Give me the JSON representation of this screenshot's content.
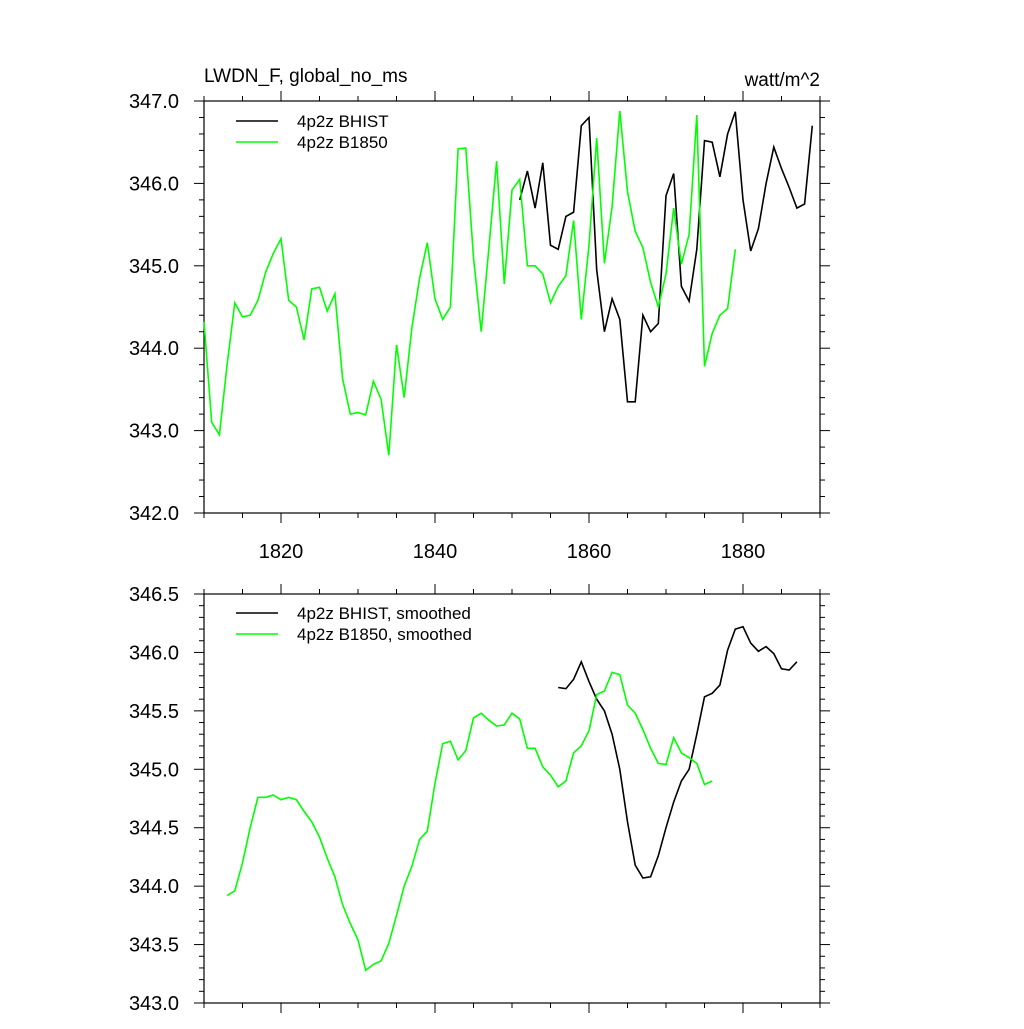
{
  "chart_data": [
    {
      "type": "line",
      "title_left": "LWDN_F, global_no_ms",
      "title_right": "watt/m^2",
      "xlim": [
        1810,
        1890
      ],
      "ylim": [
        342.0,
        347.0
      ],
      "x_ticks": [
        1820,
        1840,
        1860,
        1880
      ],
      "x_tick_labels": [
        "1820",
        "1840",
        "1860",
        "1880"
      ],
      "y_ticks": [
        342.0,
        343.0,
        344.0,
        345.0,
        346.0,
        347.0
      ],
      "y_tick_labels": [
        "342.0",
        "343.0",
        "344.0",
        "345.0",
        "346.0",
        "347.0"
      ],
      "legend_position": "top-left",
      "series": [
        {
          "name": "4p2z BHIST",
          "color": "#000000",
          "x": [
            1851,
            1852,
            1853,
            1854,
            1855,
            1856,
            1857,
            1858,
            1859,
            1860,
            1861,
            1862,
            1863,
            1864,
            1865,
            1866,
            1867,
            1868,
            1869,
            1870,
            1871,
            1872,
            1873,
            1874,
            1875,
            1876,
            1877,
            1878,
            1879,
            1880,
            1881,
            1882,
            1883,
            1884,
            1885,
            1886,
            1887,
            1888,
            1889
          ],
          "y": [
            345.8,
            346.15,
            345.7,
            346.25,
            345.25,
            345.2,
            345.6,
            345.65,
            346.7,
            346.8,
            344.95,
            344.2,
            344.6,
            344.35,
            343.35,
            343.35,
            344.4,
            344.2,
            344.3,
            345.85,
            346.12,
            344.75,
            344.57,
            345.2,
            346.52,
            346.5,
            346.08,
            346.6,
            346.87,
            345.8,
            345.18,
            345.45,
            346.0,
            346.44,
            346.18,
            345.95,
            345.7,
            345.75,
            346.7
          ]
        },
        {
          "name": "4p2z B1850",
          "color": "#00ff00",
          "x": [
            1810,
            1811,
            1812,
            1813,
            1814,
            1815,
            1816,
            1817,
            1818,
            1819,
            1820,
            1821,
            1822,
            1823,
            1824,
            1825,
            1826,
            1827,
            1828,
            1829,
            1830,
            1831,
            1832,
            1833,
            1834,
            1835,
            1836,
            1837,
            1838,
            1839,
            1840,
            1841,
            1842,
            1843,
            1844,
            1845,
            1846,
            1847,
            1848,
            1849,
            1850,
            1851,
            1852,
            1853,
            1854,
            1855,
            1856,
            1857,
            1858,
            1859,
            1860,
            1861,
            1862,
            1863,
            1864,
            1865,
            1866,
            1867,
            1868,
            1869,
            1870,
            1871,
            1872,
            1873,
            1874,
            1875,
            1876,
            1877,
            1878,
            1879
          ],
          "y": [
            344.32,
            343.1,
            342.95,
            343.8,
            344.55,
            344.38,
            344.4,
            344.58,
            344.92,
            345.15,
            345.33,
            344.58,
            344.5,
            344.1,
            344.72,
            344.74,
            344.45,
            344.66,
            343.63,
            343.2,
            343.22,
            343.19,
            343.6,
            343.38,
            342.7,
            344.04,
            343.4,
            344.25,
            344.85,
            345.28,
            344.6,
            344.35,
            344.5,
            346.42,
            346.43,
            345.1,
            344.2,
            345.22,
            346.27,
            344.78,
            345.92,
            346.05,
            345.0,
            345.0,
            344.9,
            344.55,
            344.75,
            344.88,
            345.55,
            344.35,
            345.25,
            346.55,
            345.03,
            345.72,
            346.88,
            345.9,
            345.42,
            345.22,
            344.8,
            344.5,
            344.9,
            345.7,
            345.02,
            345.38,
            346.83,
            343.78,
            344.18,
            344.4,
            344.48,
            345.2
          ]
        }
      ]
    },
    {
      "type": "line",
      "xlim": [
        1810,
        1890
      ],
      "ylim": [
        343.0,
        346.5
      ],
      "y_ticks": [
        343.0,
        343.5,
        344.0,
        344.5,
        345.0,
        345.5,
        346.0,
        346.5
      ],
      "y_tick_labels": [
        "343.0",
        "343.5",
        "344.0",
        "344.5",
        "345.0",
        "345.5",
        "346.0",
        "346.5"
      ],
      "legend_position": "top-left",
      "series": [
        {
          "name": "4p2z BHIST, smoothed",
          "color": "#000000",
          "x": [
            1856,
            1857,
            1858,
            1859,
            1860,
            1861,
            1862,
            1863,
            1864,
            1865,
            1866,
            1867,
            1868,
            1869,
            1870,
            1871,
            1872,
            1873,
            1874,
            1875,
            1876,
            1877,
            1878,
            1879,
            1880,
            1881,
            1882,
            1883,
            1884,
            1885,
            1886,
            1887
          ],
          "y": [
            345.7,
            345.69,
            345.77,
            345.92,
            345.75,
            345.6,
            345.5,
            345.3,
            345.0,
            344.55,
            344.18,
            344.07,
            344.08,
            344.26,
            344.5,
            344.72,
            344.9,
            345.0,
            345.3,
            345.62,
            345.65,
            345.72,
            346.02,
            346.2,
            346.22,
            346.08,
            346.01,
            346.05,
            345.99,
            345.86,
            345.85,
            345.92
          ]
        },
        {
          "name": "4p2z B1850, smoothed",
          "color": "#00ff00",
          "x": [
            1813,
            1814,
            1815,
            1816,
            1817,
            1818,
            1819,
            1820,
            1821,
            1822,
            1823,
            1824,
            1825,
            1826,
            1827,
            1828,
            1829,
            1830,
            1831,
            1832,
            1833,
            1834,
            1835,
            1836,
            1837,
            1838,
            1839,
            1840,
            1841,
            1842,
            1843,
            1844,
            1845,
            1846,
            1847,
            1848,
            1849,
            1850,
            1851,
            1852,
            1853,
            1854,
            1855,
            1856,
            1857,
            1858,
            1859,
            1860,
            1861,
            1862,
            1863,
            1864,
            1865,
            1866,
            1867,
            1868,
            1869,
            1870,
            1871,
            1872,
            1873,
            1874,
            1875,
            1876
          ],
          "y": [
            343.92,
            343.96,
            344.2,
            344.5,
            344.76,
            344.76,
            344.78,
            344.74,
            344.76,
            344.74,
            344.64,
            344.55,
            344.42,
            344.24,
            344.08,
            343.84,
            343.68,
            343.54,
            343.28,
            343.33,
            343.36,
            343.51,
            343.75,
            344.0,
            344.17,
            344.4,
            344.47,
            344.88,
            345.22,
            345.24,
            345.08,
            345.16,
            345.44,
            345.48,
            345.42,
            345.37,
            345.38,
            345.48,
            345.43,
            345.18,
            345.18,
            345.02,
            344.95,
            344.85,
            344.9,
            345.14,
            345.2,
            345.33,
            345.64,
            345.67,
            345.83,
            345.81,
            345.55,
            345.48,
            345.34,
            345.18,
            345.05,
            345.04,
            345.27,
            345.14,
            345.1,
            345.05,
            344.87,
            344.9
          ]
        }
      ]
    }
  ]
}
